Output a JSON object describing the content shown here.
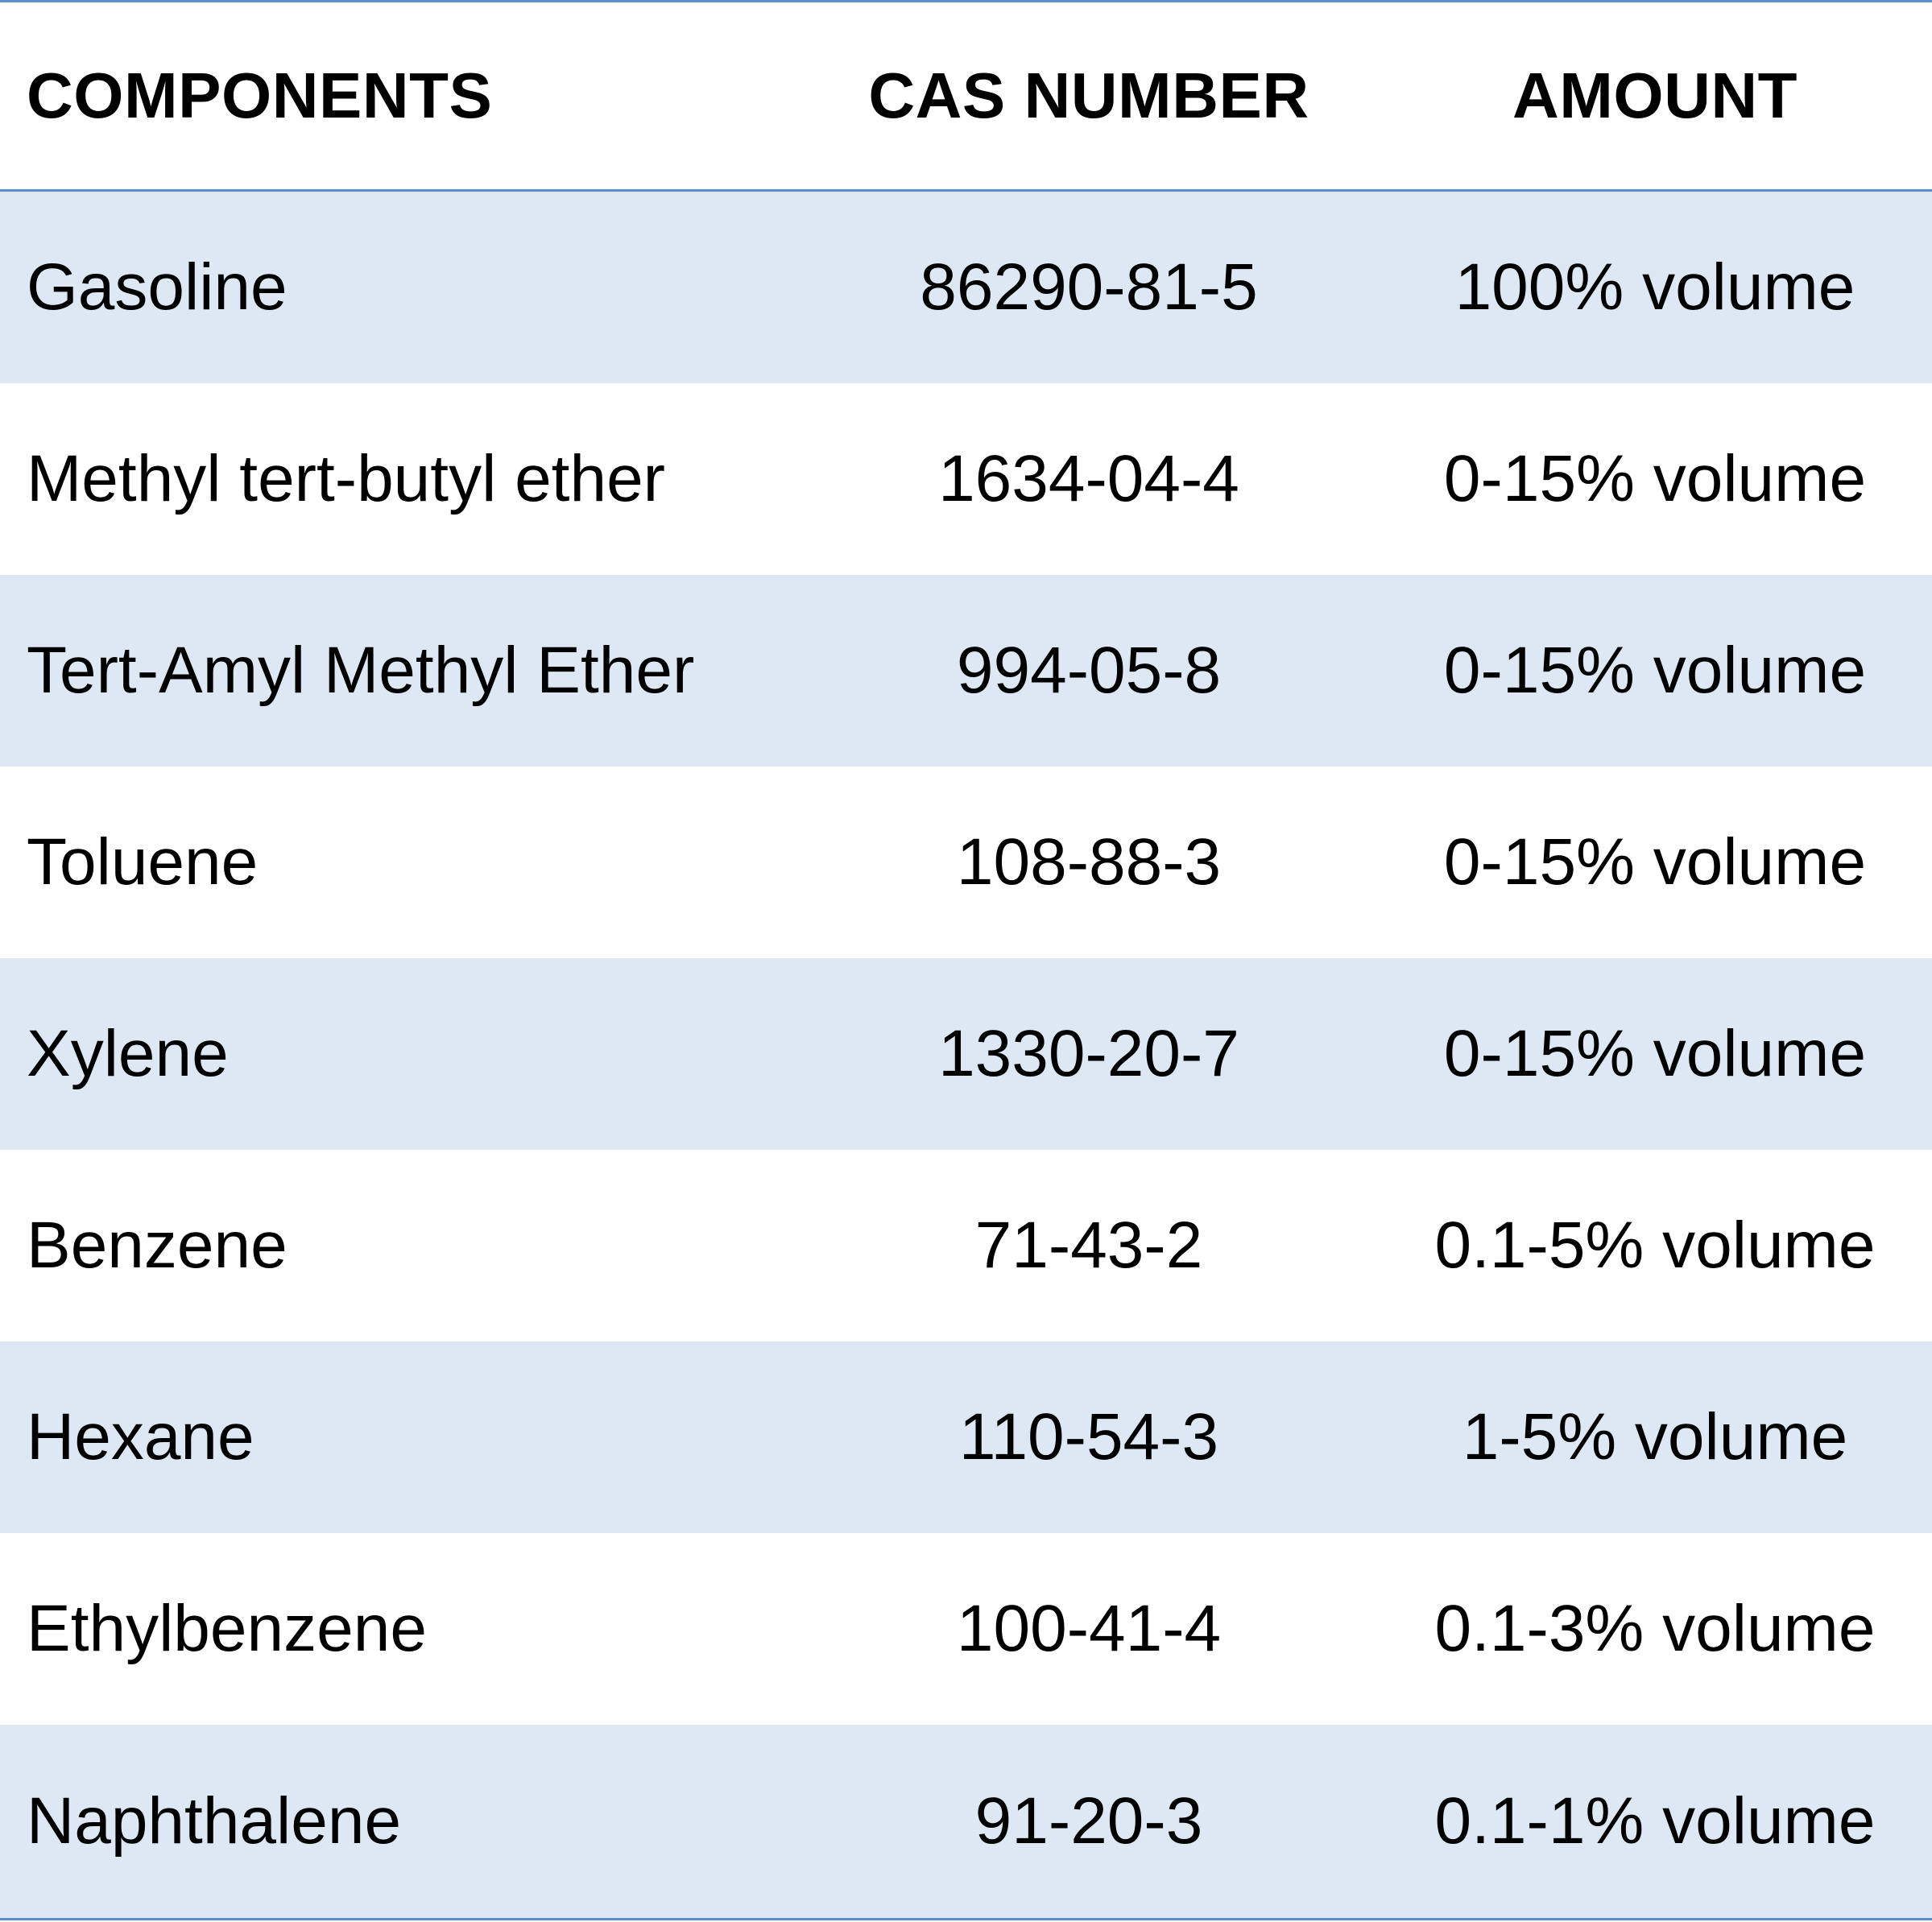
{
  "table": {
    "headers": {
      "components": "COMPONENTS",
      "cas_number": "CAS NUMBER",
      "amount": "AMOUNT"
    },
    "rows": [
      {
        "component": "Gasoline",
        "cas": "86290-81-5",
        "amount": "100% volume"
      },
      {
        "component": "Methyl tert-butyl ether",
        "cas": "1634-04-4",
        "amount": "0-15% volume"
      },
      {
        "component": "Tert-Amyl Methyl Ether",
        "cas": "994-05-8",
        "amount": "0-15% volume"
      },
      {
        "component": "Toluene",
        "cas": "108-88-3",
        "amount": "0-15% volume"
      },
      {
        "component": "Xylene",
        "cas": "1330-20-7",
        "amount": "0-15% volume"
      },
      {
        "component": "Benzene",
        "cas": "71-43-2",
        "amount": "0.1-5% volume"
      },
      {
        "component": "Hexane",
        "cas": "110-54-3",
        "amount": "1-5% volume"
      },
      {
        "component": "Ethylbenzene",
        "cas": "100-41-4",
        "amount": "0.1-3% volume"
      },
      {
        "component": "Naphthalene",
        "cas": "91-20-3",
        "amount": "0.1-1% volume"
      }
    ],
    "colors": {
      "rule": "#5b8fce",
      "shaded_row": "#dde8f4",
      "plain_row": "#ffffff",
      "text": "#000000"
    }
  }
}
